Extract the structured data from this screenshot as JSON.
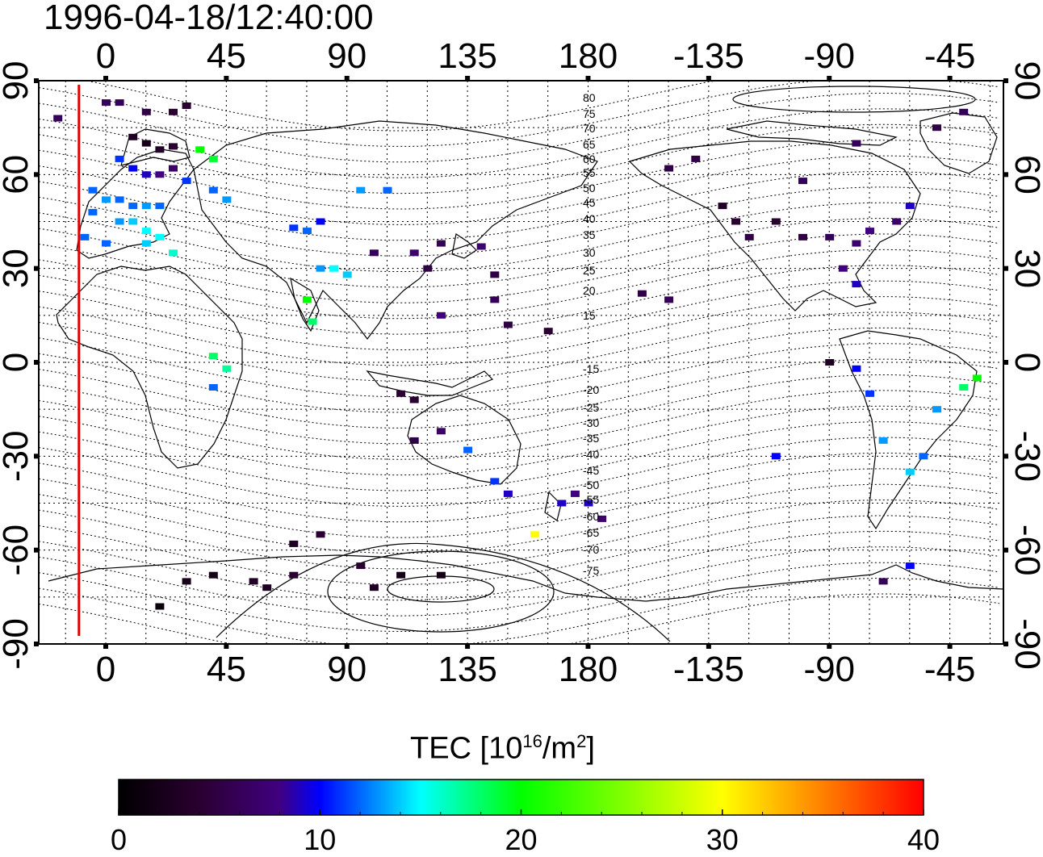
{
  "title": "1996-04-18/12:40:00",
  "map": {
    "type": "geomagnetic TEC map",
    "x_axis_ticks": [
      "0",
      "45",
      "90",
      "135",
      "180",
      "-135",
      "-90",
      "-45"
    ],
    "y_axis_ticks": [
      "90",
      "60",
      "30",
      "0",
      "-30",
      "-60",
      "-90"
    ],
    "x_range_deg": [
      -25,
      335
    ],
    "y_range_deg": [
      -90,
      90
    ],
    "grid": true,
    "contour_labels": [
      "80",
      "75",
      "70",
      "65",
      "60",
      "55",
      "50",
      "45",
      "40",
      "35",
      "30",
      "25",
      "20",
      "15",
      "-15",
      "-20",
      "-25",
      "-30",
      "-35",
      "-40",
      "-45",
      "-50",
      "-55",
      "-60",
      "-65",
      "-70",
      "-75"
    ],
    "terminator_longitude": -10,
    "terminator_color": "#e00000"
  },
  "colorbar": {
    "title_main": "TEC  [10",
    "title_sup1": "16",
    "title_mid": "/m",
    "title_sup2": "2",
    "title_end": "]",
    "min": 0,
    "max": 40,
    "ticks": [
      "0",
      "10",
      "20",
      "30",
      "40"
    ]
  },
  "chart_data": {
    "type": "heatmap",
    "title": "1996-04-18/12:40:00",
    "value_range": [
      0,
      40
    ],
    "points": [
      {
        "lon": 0,
        "lat": 83,
        "tec": 6
      },
      {
        "lon": 5,
        "lat": 83,
        "tec": 6
      },
      {
        "lon": 15,
        "lat": 80,
        "tec": 5
      },
      {
        "lon": 25,
        "lat": 80,
        "tec": 4
      },
      {
        "lon": 30,
        "lat": 82,
        "tec": 4
      },
      {
        "lon": -18,
        "lat": 78,
        "tec": 6
      },
      {
        "lon": 10,
        "lat": 72,
        "tec": 3
      },
      {
        "lon": 15,
        "lat": 70,
        "tec": 2
      },
      {
        "lon": 20,
        "lat": 68,
        "tec": 3
      },
      {
        "lon": 25,
        "lat": 69,
        "tec": 4
      },
      {
        "lon": 5,
        "lat": 65,
        "tec": 11
      },
      {
        "lon": 10,
        "lat": 62,
        "tec": 10
      },
      {
        "lon": 15,
        "lat": 60,
        "tec": 9
      },
      {
        "lon": 20,
        "lat": 60,
        "tec": 8
      },
      {
        "lon": 25,
        "lat": 62,
        "tec": 7
      },
      {
        "lon": 30,
        "lat": 58,
        "tec": 11
      },
      {
        "lon": -5,
        "lat": 55,
        "tec": 12
      },
      {
        "lon": 0,
        "lat": 52,
        "tec": 13
      },
      {
        "lon": 5,
        "lat": 52,
        "tec": 12
      },
      {
        "lon": 10,
        "lat": 50,
        "tec": 12
      },
      {
        "lon": 15,
        "lat": 50,
        "tec": 13
      },
      {
        "lon": 20,
        "lat": 50,
        "tec": 12
      },
      {
        "lon": -5,
        "lat": 48,
        "tec": 12
      },
      {
        "lon": 5,
        "lat": 45,
        "tec": 13
      },
      {
        "lon": 10,
        "lat": 45,
        "tec": 14
      },
      {
        "lon": 15,
        "lat": 42,
        "tec": 15
      },
      {
        "lon": 20,
        "lat": 40,
        "tec": 15
      },
      {
        "lon": -8,
        "lat": 40,
        "tec": 12
      },
      {
        "lon": 0,
        "lat": 38,
        "tec": 12
      },
      {
        "lon": 15,
        "lat": 38,
        "tec": 14
      },
      {
        "lon": 25,
        "lat": 35,
        "tec": 16
      },
      {
        "lon": 35,
        "lat": 68,
        "tec": 20
      },
      {
        "lon": 40,
        "lat": 65,
        "tec": 19
      },
      {
        "lon": 40,
        "lat": 55,
        "tec": 12
      },
      {
        "lon": 45,
        "lat": 52,
        "tec": 13
      },
      {
        "lon": 70,
        "lat": 43,
        "tec": 11
      },
      {
        "lon": 75,
        "lat": 42,
        "tec": 12
      },
      {
        "lon": 80,
        "lat": 45,
        "tec": 10
      },
      {
        "lon": 95,
        "lat": 55,
        "tec": 13
      },
      {
        "lon": 105,
        "lat": 55,
        "tec": 12
      },
      {
        "lon": 80,
        "lat": 30,
        "tec": 13
      },
      {
        "lon": 90,
        "lat": 28,
        "tec": 14
      },
      {
        "lon": 85,
        "lat": 30,
        "tec": 15
      },
      {
        "lon": 75,
        "lat": 20,
        "tec": 20
      },
      {
        "lon": 77,
        "lat": 13,
        "tec": 18
      },
      {
        "lon": 100,
        "lat": 35,
        "tec": 6
      },
      {
        "lon": 115,
        "lat": 35,
        "tec": 7
      },
      {
        "lon": 120,
        "lat": 30,
        "tec": 5
      },
      {
        "lon": 125,
        "lat": 38,
        "tec": 6
      },
      {
        "lon": 140,
        "lat": 37,
        "tec": 7
      },
      {
        "lon": 145,
        "lat": 28,
        "tec": 5
      },
      {
        "lon": 145,
        "lat": 20,
        "tec": 6
      },
      {
        "lon": 150,
        "lat": 12,
        "tec": 5
      },
      {
        "lon": 165,
        "lat": 10,
        "tec": 4
      },
      {
        "lon": 125,
        "lat": 15,
        "tec": 8
      },
      {
        "lon": 40,
        "lat": 2,
        "tec": 18
      },
      {
        "lon": 45,
        "lat": -2,
        "tec": 17
      },
      {
        "lon": 40,
        "lat": -8,
        "tec": 12
      },
      {
        "lon": 110,
        "lat": -10,
        "tec": 4
      },
      {
        "lon": 115,
        "lat": -12,
        "tec": 4
      },
      {
        "lon": 115,
        "lat": -25,
        "tec": 5
      },
      {
        "lon": 125,
        "lat": -22,
        "tec": 7
      },
      {
        "lon": 135,
        "lat": -28,
        "tec": 12
      },
      {
        "lon": 145,
        "lat": -38,
        "tec": 11
      },
      {
        "lon": 150,
        "lat": -42,
        "tec": 9
      },
      {
        "lon": 170,
        "lat": -45,
        "tec": 9
      },
      {
        "lon": 175,
        "lat": -42,
        "tec": 8
      },
      {
        "lon": 180,
        "lat": -45,
        "tec": 9
      },
      {
        "lon": 160,
        "lat": -55,
        "tec": 30
      },
      {
        "lon": 185,
        "lat": -50,
        "tec": 7
      },
      {
        "lon": -130,
        "lat": 50,
        "tec": 3
      },
      {
        "lon": -125,
        "lat": 45,
        "tec": 4
      },
      {
        "lon": -120,
        "lat": 40,
        "tec": 5
      },
      {
        "lon": -110,
        "lat": 45,
        "tec": 4
      },
      {
        "lon": -100,
        "lat": 40,
        "tec": 5
      },
      {
        "lon": -90,
        "lat": 40,
        "tec": 6
      },
      {
        "lon": -80,
        "lat": 38,
        "tec": 7
      },
      {
        "lon": -75,
        "lat": 42,
        "tec": 8
      },
      {
        "lon": -85,
        "lat": 30,
        "tec": 8
      },
      {
        "lon": -80,
        "lat": 25,
        "tec": 9
      },
      {
        "lon": -150,
        "lat": 62,
        "tec": 5
      },
      {
        "lon": -140,
        "lat": 65,
        "tec": 5
      },
      {
        "lon": -100,
        "lat": 58,
        "tec": 6
      },
      {
        "lon": -65,
        "lat": 45,
        "tec": 7
      },
      {
        "lon": -60,
        "lat": 50,
        "tec": 9
      },
      {
        "lon": -80,
        "lat": 70,
        "tec": 6
      },
      {
        "lon": -50,
        "lat": 75,
        "tec": 5
      },
      {
        "lon": -40,
        "lat": 80,
        "tec": 6
      },
      {
        "lon": -160,
        "lat": 22,
        "tec": 5
      },
      {
        "lon": -150,
        "lat": 20,
        "tec": 6
      },
      {
        "lon": -90,
        "lat": 0,
        "tec": 3
      },
      {
        "lon": -80,
        "lat": -2,
        "tec": 10
      },
      {
        "lon": -75,
        "lat": -10,
        "tec": 11
      },
      {
        "lon": -70,
        "lat": -25,
        "tec": 13
      },
      {
        "lon": -60,
        "lat": -35,
        "tec": 14
      },
      {
        "lon": -55,
        "lat": -30,
        "tec": 12
      },
      {
        "lon": -50,
        "lat": -15,
        "tec": 13
      },
      {
        "lon": -40,
        "lat": -8,
        "tec": 18
      },
      {
        "lon": -35,
        "lat": -5,
        "tec": 20
      },
      {
        "lon": -110,
        "lat": -30,
        "tec": 10
      },
      {
        "lon": -70,
        "lat": -70,
        "tec": 6
      },
      {
        "lon": -60,
        "lat": -65,
        "tec": 10
      },
      {
        "lon": 30,
        "lat": -70,
        "tec": 2
      },
      {
        "lon": 40,
        "lat": -68,
        "tec": 2
      },
      {
        "lon": 55,
        "lat": -70,
        "tec": 3
      },
      {
        "lon": 60,
        "lat": -72,
        "tec": 3
      },
      {
        "lon": 70,
        "lat": -68,
        "tec": 4
      },
      {
        "lon": 100,
        "lat": -72,
        "tec": 3
      },
      {
        "lon": 110,
        "lat": -68,
        "tec": 2
      },
      {
        "lon": 125,
        "lat": -68,
        "tec": 2
      },
      {
        "lon": 80,
        "lat": -55,
        "tec": 4
      },
      {
        "lon": 70,
        "lat": -58,
        "tec": 3
      },
      {
        "lon": 95,
        "lat": -65,
        "tec": 4
      },
      {
        "lon": 20,
        "lat": -78,
        "tec": 1
      }
    ]
  }
}
